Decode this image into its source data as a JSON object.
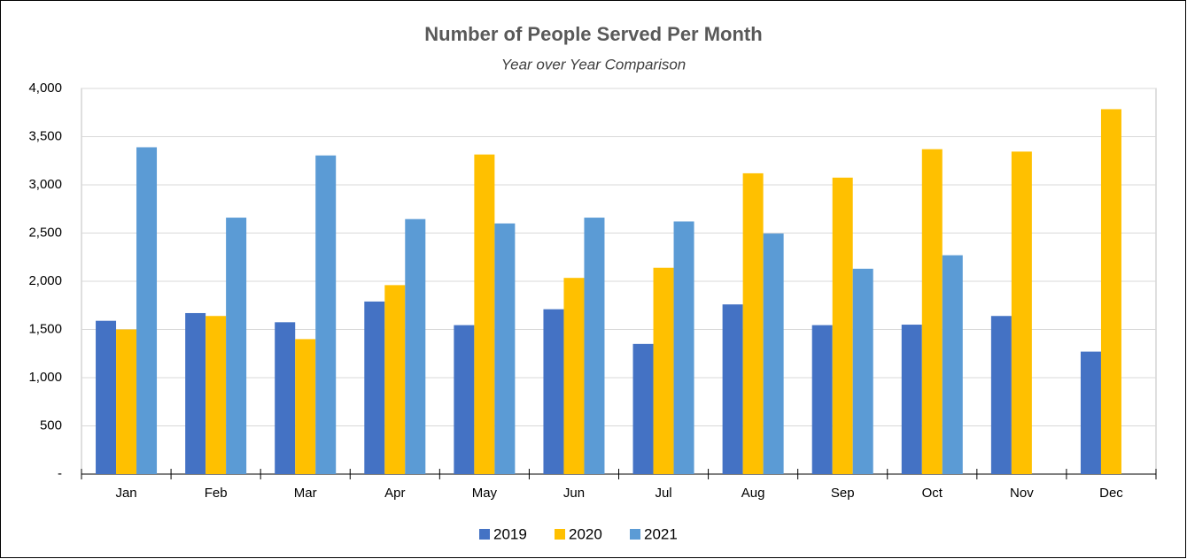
{
  "chart_data": {
    "type": "bar",
    "title": "Number of People Served Per Month",
    "subtitle": "Year over Year Comparison",
    "categories": [
      "Jan",
      "Feb",
      "Mar",
      "Apr",
      "May",
      "Jun",
      "Jul",
      "Aug",
      "Sep",
      "Oct",
      "Nov",
      "Dec"
    ],
    "series": [
      {
        "name": "2019",
        "color": "#4472c4",
        "values": [
          1590,
          1670,
          1575,
          1790,
          1545,
          1710,
          1350,
          1760,
          1545,
          1550,
          1640,
          1270
        ]
      },
      {
        "name": "2020",
        "color": "#ffc000",
        "values": [
          1500,
          1640,
          1400,
          1960,
          3315,
          2035,
          2140,
          3120,
          3075,
          3370,
          3345,
          3785
        ]
      },
      {
        "name": "2021",
        "color": "#5b9bd5",
        "values": [
          3390,
          2660,
          3305,
          2645,
          2600,
          2660,
          2620,
          2495,
          2130,
          2270,
          null,
          null
        ]
      }
    ],
    "ylim": [
      0,
      4000
    ],
    "yticks": [
      {
        "value": 0,
        "label": "-"
      },
      500,
      {
        "value": 1000,
        "label": "1,000"
      },
      {
        "value": 1500,
        "label": "1,500"
      },
      {
        "value": 2000,
        "label": "2,000"
      },
      {
        "value": 2500,
        "label": "2,500"
      },
      {
        "value": 3000,
        "label": "3,000"
      },
      {
        "value": 3500,
        "label": "3,500"
      },
      {
        "value": 4000,
        "label": "4,000"
      }
    ],
    "grid": true,
    "legend": "bottom"
  }
}
